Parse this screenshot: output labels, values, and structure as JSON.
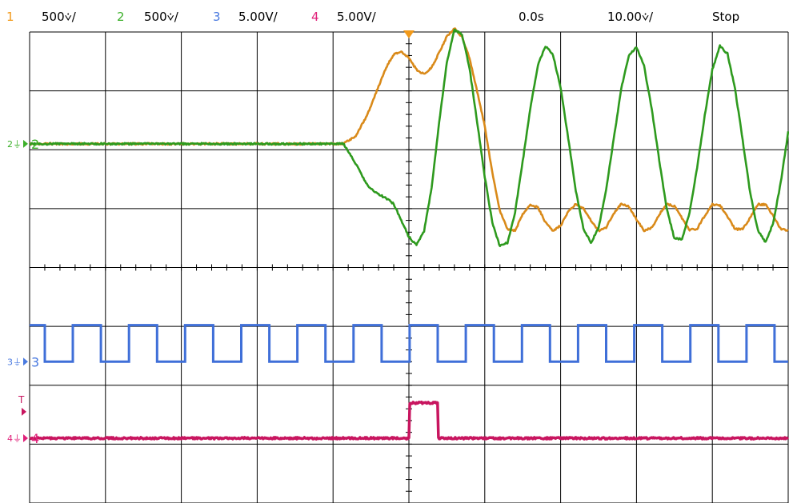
{
  "status_bar": {
    "channels": [
      {
        "number": "1",
        "scale": "500⩒/",
        "color": "#f29a1a"
      },
      {
        "number": "2",
        "scale": "500⩒/",
        "color": "#3cb02a"
      },
      {
        "number": "3",
        "scale": "5.00V/",
        "color": "#4a7ae0"
      },
      {
        "number": "4",
        "scale": "5.00V/",
        "color": "#e0217a"
      }
    ],
    "time_offset": "0.0s",
    "time_scale": "10.00⩒/",
    "run_state": "Stop"
  },
  "colors": {
    "ch1": "#d98a1a",
    "ch2": "#2e9a1e",
    "ch3": "#3f6fd8",
    "ch4": "#c8155f",
    "grid": "#000000",
    "trigger_marker": "#f29a1a"
  },
  "chart_data": {
    "type": "line",
    "title": "",
    "grid": true,
    "divisions": {
      "x": 10,
      "y": 8
    },
    "xlim": [
      -50,
      50
    ],
    "x_unit_per_div": 10,
    "channel_markers": [
      {
        "id": "2",
        "label": "2",
        "ground_symbol": "2⏚",
        "color": "#3cb02a",
        "div_from_top": 1.9
      },
      {
        "id": "3",
        "label": "3",
        "ground_symbol": "3⏚",
        "color": "#4a7ae0",
        "div_from_top": 5.6
      },
      {
        "id": "4",
        "label": "4",
        "ground_symbol": "4⏚",
        "color": "#e0217a",
        "div_from_top": 6.9
      }
    ],
    "trigger_level_label": "T",
    "series": [
      {
        "id": "1",
        "offset_div_from_top": 1.9,
        "x": [
          -50,
          -8.6,
          -7,
          -5.5,
          -4,
          -3,
          -2,
          -1,
          0,
          1,
          2,
          3,
          4,
          5,
          6,
          7,
          8,
          9,
          10,
          11,
          12,
          13,
          14,
          15,
          16,
          17,
          18,
          19,
          20,
          21,
          22,
          23,
          24,
          25,
          26,
          27,
          28,
          29,
          30,
          31,
          32,
          33,
          34,
          35,
          36,
          37,
          38,
          39,
          40,
          41,
          42,
          43,
          44,
          45,
          46,
          47,
          48,
          49,
          50
        ],
        "y": [
          0,
          0,
          0.14,
          0.49,
          0.98,
          1.3,
          1.52,
          1.57,
          1.46,
          1.26,
          1.18,
          1.3,
          1.55,
          1.82,
          1.96,
          1.82,
          1.45,
          0.89,
          0.3,
          -0.5,
          -1.14,
          -1.45,
          -1.47,
          -1.2,
          -1.03,
          -1.08,
          -1.33,
          -1.48,
          -1.39,
          -1.15,
          -1.02,
          -1.09,
          -1.3,
          -1.48,
          -1.42,
          -1.18,
          -1.02,
          -1.07,
          -1.28,
          -1.47,
          -1.43,
          -1.2,
          -1.02,
          -1.06,
          -1.26,
          -1.46,
          -1.44,
          -1.22,
          -1.03,
          -1.04,
          -1.24,
          -1.45,
          -1.45,
          -1.25,
          -1.03,
          -1.03,
          -1.22,
          -1.44,
          -1.47
        ]
      },
      {
        "id": "2",
        "offset_div_from_top": 1.9,
        "x": [
          -50,
          -8.6,
          -7,
          -5.5,
          -4,
          -3,
          -2,
          -1,
          0,
          1,
          2,
          3,
          4,
          5,
          6,
          7,
          8,
          9,
          10,
          11,
          12,
          13,
          14,
          15,
          16,
          17,
          18,
          19,
          20,
          21,
          22,
          23,
          24,
          25,
          26,
          27,
          28,
          29,
          30,
          31,
          32,
          33,
          34,
          35,
          36,
          37,
          38,
          39,
          40,
          41,
          42,
          43,
          44,
          45,
          46,
          47,
          48,
          49,
          50
        ],
        "y": [
          0,
          0,
          -0.34,
          -0.7,
          -0.86,
          -0.92,
          -1.02,
          -1.3,
          -1.58,
          -1.72,
          -1.48,
          -0.74,
          0.38,
          1.38,
          1.94,
          1.86,
          1.28,
          0.37,
          -0.56,
          -1.34,
          -1.74,
          -1.68,
          -1.16,
          -0.3,
          0.6,
          1.34,
          1.66,
          1.51,
          0.95,
          0.1,
          -0.8,
          -1.44,
          -1.68,
          -1.43,
          -0.78,
          0.08,
          0.94,
          1.51,
          1.64,
          1.32,
          0.6,
          -0.28,
          -1.11,
          -1.61,
          -1.62,
          -1.17,
          -0.4,
          0.48,
          1.26,
          1.66,
          1.53,
          0.93,
          0.06,
          -0.84,
          -1.47,
          -1.67,
          -1.36,
          -0.67,
          0.2
        ]
      },
      {
        "id": "3",
        "offset_div_from_top": 5.6,
        "square_wave": {
          "high_div": 0.62,
          "low_div": 0,
          "period_div": 0.74,
          "first_rise_div": 0.2
        },
        "x": [
          -50,
          50
        ],
        "y": [
          0,
          0
        ]
      },
      {
        "id": "4",
        "offset_div_from_top": 6.9,
        "pulse": {
          "start_div": 5.0,
          "end_div": 5.38,
          "high_div": 0.6
        },
        "x": [
          -50,
          0,
          0,
          3.8,
          3.8,
          50
        ],
        "y": [
          0,
          0,
          0.6,
          0.6,
          0,
          0
        ]
      }
    ]
  }
}
